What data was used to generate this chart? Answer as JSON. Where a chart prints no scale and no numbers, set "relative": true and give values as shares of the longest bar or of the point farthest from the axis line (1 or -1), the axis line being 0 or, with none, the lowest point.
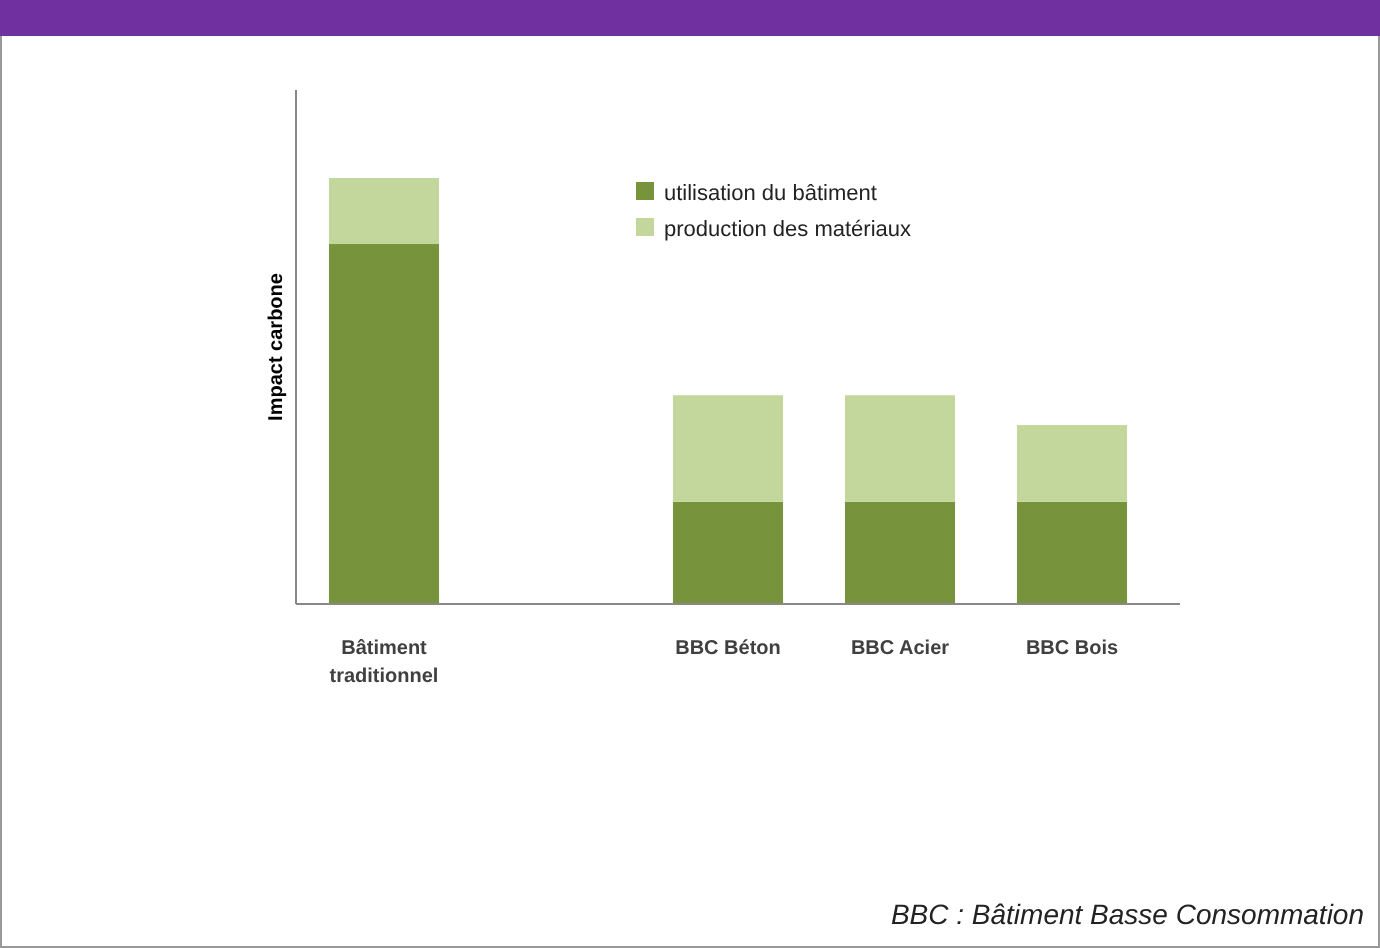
{
  "chart_data": {
    "type": "bar",
    "stacked": true,
    "relative": true,
    "ylabel": "Impact carbone",
    "categories": [
      "Bâtiment traditionnel",
      null,
      "BBC Béton",
      "BBC Acier",
      "BBC Bois"
    ],
    "series": [
      {
        "name": "utilisation du bâtiment",
        "color": "#77933c",
        "values": [
          0.845,
          null,
          0.24,
          0.24,
          0.24
        ]
      },
      {
        "name": "production des matériaux",
        "color": "#c3d69b",
        "values": [
          0.155,
          null,
          0.25,
          0.25,
          0.18
        ]
      }
    ],
    "legend": "top right",
    "annotations": [
      "BBC : Bâtiment Basse Consommation"
    ]
  }
}
